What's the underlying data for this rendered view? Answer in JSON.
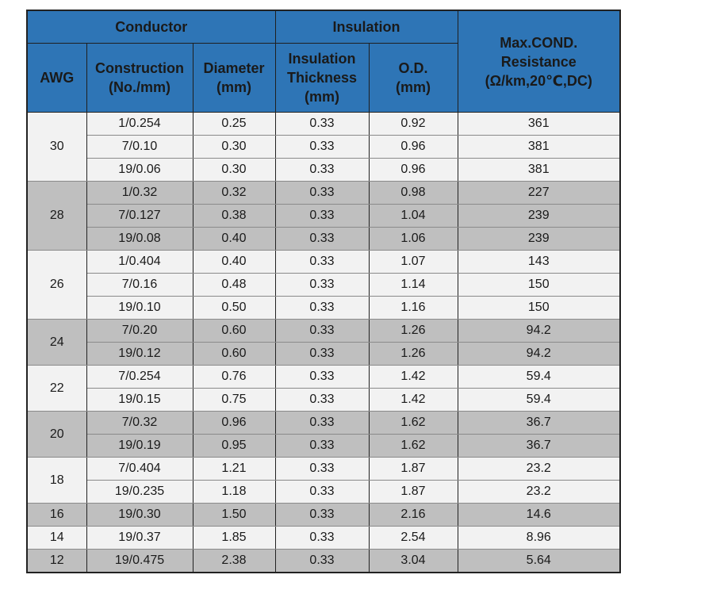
{
  "table": {
    "group_headers": {
      "conductor": "Conductor",
      "insulation": "Insulation",
      "resistance": "Max.COND.\nResistance\n(Ω/km,20℃,DC)"
    },
    "column_headers": {
      "awg": "AWG",
      "construction": "Construction\n(No./mm)",
      "diameter": "Diameter\n(mm)",
      "insulation_thickness": "Insulation\nThickness\n(mm)",
      "od": "O.D.\n(mm)"
    },
    "groups": [
      {
        "awg": "30",
        "shade": "light",
        "rows": [
          {
            "construction": "1/0.254",
            "diameter": "0.25",
            "thickness": "0.33",
            "od": "0.92",
            "resistance": "361"
          },
          {
            "construction": "7/0.10",
            "diameter": "0.30",
            "thickness": "0.33",
            "od": "0.96",
            "resistance": "381"
          },
          {
            "construction": "19/0.06",
            "diameter": "0.30",
            "thickness": "0.33",
            "od": "0.96",
            "resistance": "381"
          }
        ]
      },
      {
        "awg": "28",
        "shade": "dark",
        "rows": [
          {
            "construction": "1/0.32",
            "diameter": "0.32",
            "thickness": "0.33",
            "od": "0.98",
            "resistance": "227"
          },
          {
            "construction": "7/0.127",
            "diameter": "0.38",
            "thickness": "0.33",
            "od": "1.04",
            "resistance": "239"
          },
          {
            "construction": "19/0.08",
            "diameter": "0.40",
            "thickness": "0.33",
            "od": "1.06",
            "resistance": "239"
          }
        ]
      },
      {
        "awg": "26",
        "shade": "light",
        "rows": [
          {
            "construction": "1/0.404",
            "diameter": "0.40",
            "thickness": "0.33",
            "od": "1.07",
            "resistance": "143"
          },
          {
            "construction": "7/0.16",
            "diameter": "0.48",
            "thickness": "0.33",
            "od": "1.14",
            "resistance": "150"
          },
          {
            "construction": "19/0.10",
            "diameter": "0.50",
            "thickness": "0.33",
            "od": "1.16",
            "resistance": "150"
          }
        ]
      },
      {
        "awg": "24",
        "shade": "dark",
        "rows": [
          {
            "construction": "7/0.20",
            "diameter": "0.60",
            "thickness": "0.33",
            "od": "1.26",
            "resistance": "94.2"
          },
          {
            "construction": "19/0.12",
            "diameter": "0.60",
            "thickness": "0.33",
            "od": "1.26",
            "resistance": "94.2"
          }
        ]
      },
      {
        "awg": "22",
        "shade": "light",
        "rows": [
          {
            "construction": "7/0.254",
            "diameter": "0.76",
            "thickness": "0.33",
            "od": "1.42",
            "resistance": "59.4"
          },
          {
            "construction": "19/0.15",
            "diameter": "0.75",
            "thickness": "0.33",
            "od": "1.42",
            "resistance": "59.4"
          }
        ]
      },
      {
        "awg": "20",
        "shade": "dark",
        "rows": [
          {
            "construction": "7/0.32",
            "diameter": "0.96",
            "thickness": "0.33",
            "od": "1.62",
            "resistance": "36.7"
          },
          {
            "construction": "19/0.19",
            "diameter": "0.95",
            "thickness": "0.33",
            "od": "1.62",
            "resistance": "36.7"
          }
        ]
      },
      {
        "awg": "18",
        "shade": "light",
        "rows": [
          {
            "construction": "7/0.404",
            "diameter": "1.21",
            "thickness": "0.33",
            "od": "1.87",
            "resistance": "23.2"
          },
          {
            "construction": "19/0.235",
            "diameter": "1.18",
            "thickness": "0.33",
            "od": "1.87",
            "resistance": "23.2"
          }
        ]
      },
      {
        "awg": "16",
        "shade": "dark",
        "rows": [
          {
            "construction": "19/0.30",
            "diameter": "1.50",
            "thickness": "0.33",
            "od": "2.16",
            "resistance": "14.6"
          }
        ]
      },
      {
        "awg": "14",
        "shade": "light",
        "rows": [
          {
            "construction": "19/0.37",
            "diameter": "1.85",
            "thickness": "0.33",
            "od": "2.54",
            "resistance": "8.96"
          }
        ]
      },
      {
        "awg": "12",
        "shade": "dark",
        "rows": [
          {
            "construction": "19/0.475",
            "diameter": "2.38",
            "thickness": "0.33",
            "od": "3.04",
            "resistance": "5.64"
          }
        ]
      }
    ]
  },
  "colors": {
    "header_bg": "#2e75b6",
    "row_light": "#f2f2f2",
    "row_dark": "#bfbfbf",
    "border": "#222222"
  }
}
